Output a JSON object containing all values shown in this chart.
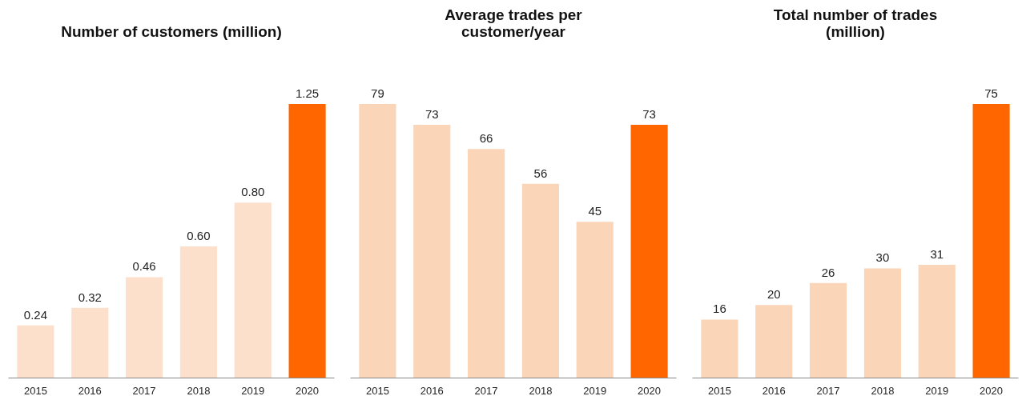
{
  "chart_data": [
    {
      "type": "bar",
      "title": "Number of customers (million)",
      "categories": [
        "2015",
        "2016",
        "2017",
        "2018",
        "2019",
        "2020"
      ],
      "values": [
        0.24,
        0.32,
        0.46,
        0.6,
        0.8,
        1.25
      ],
      "value_labels": [
        "0.24",
        "0.32",
        "0.46",
        "0.60",
        "0.80",
        "1.25"
      ],
      "colors": [
        "#fde0cc",
        "#fde0cc",
        "#fde0cc",
        "#fde0cc",
        "#fde0cc",
        "#ff6600"
      ]
    },
    {
      "type": "bar",
      "title": "Average trades per\ncustomer/year",
      "categories": [
        "2015",
        "2016",
        "2017",
        "2018",
        "2019",
        "2020"
      ],
      "values": [
        79,
        73,
        66,
        56,
        45,
        73
      ],
      "data_labels": true,
      "colors": [
        "#fbd5b8",
        "#fbd5b8",
        "#fbd5b8",
        "#fbd5b8",
        "#fbd5b8",
        "#ff6600"
      ]
    },
    {
      "type": "bar",
      "title": "Total number of trades\n(million)",
      "categories": [
        "2015",
        "2016",
        "2017",
        "2018",
        "2019",
        "2020"
      ],
      "values": [
        16,
        20,
        26,
        30,
        31,
        75
      ],
      "data_labels": true,
      "colors": [
        "#fbd5b8",
        "#fbd5b8",
        "#fbd5b8",
        "#fbd5b8",
        "#fbd5b8",
        "#ff6600"
      ]
    }
  ]
}
